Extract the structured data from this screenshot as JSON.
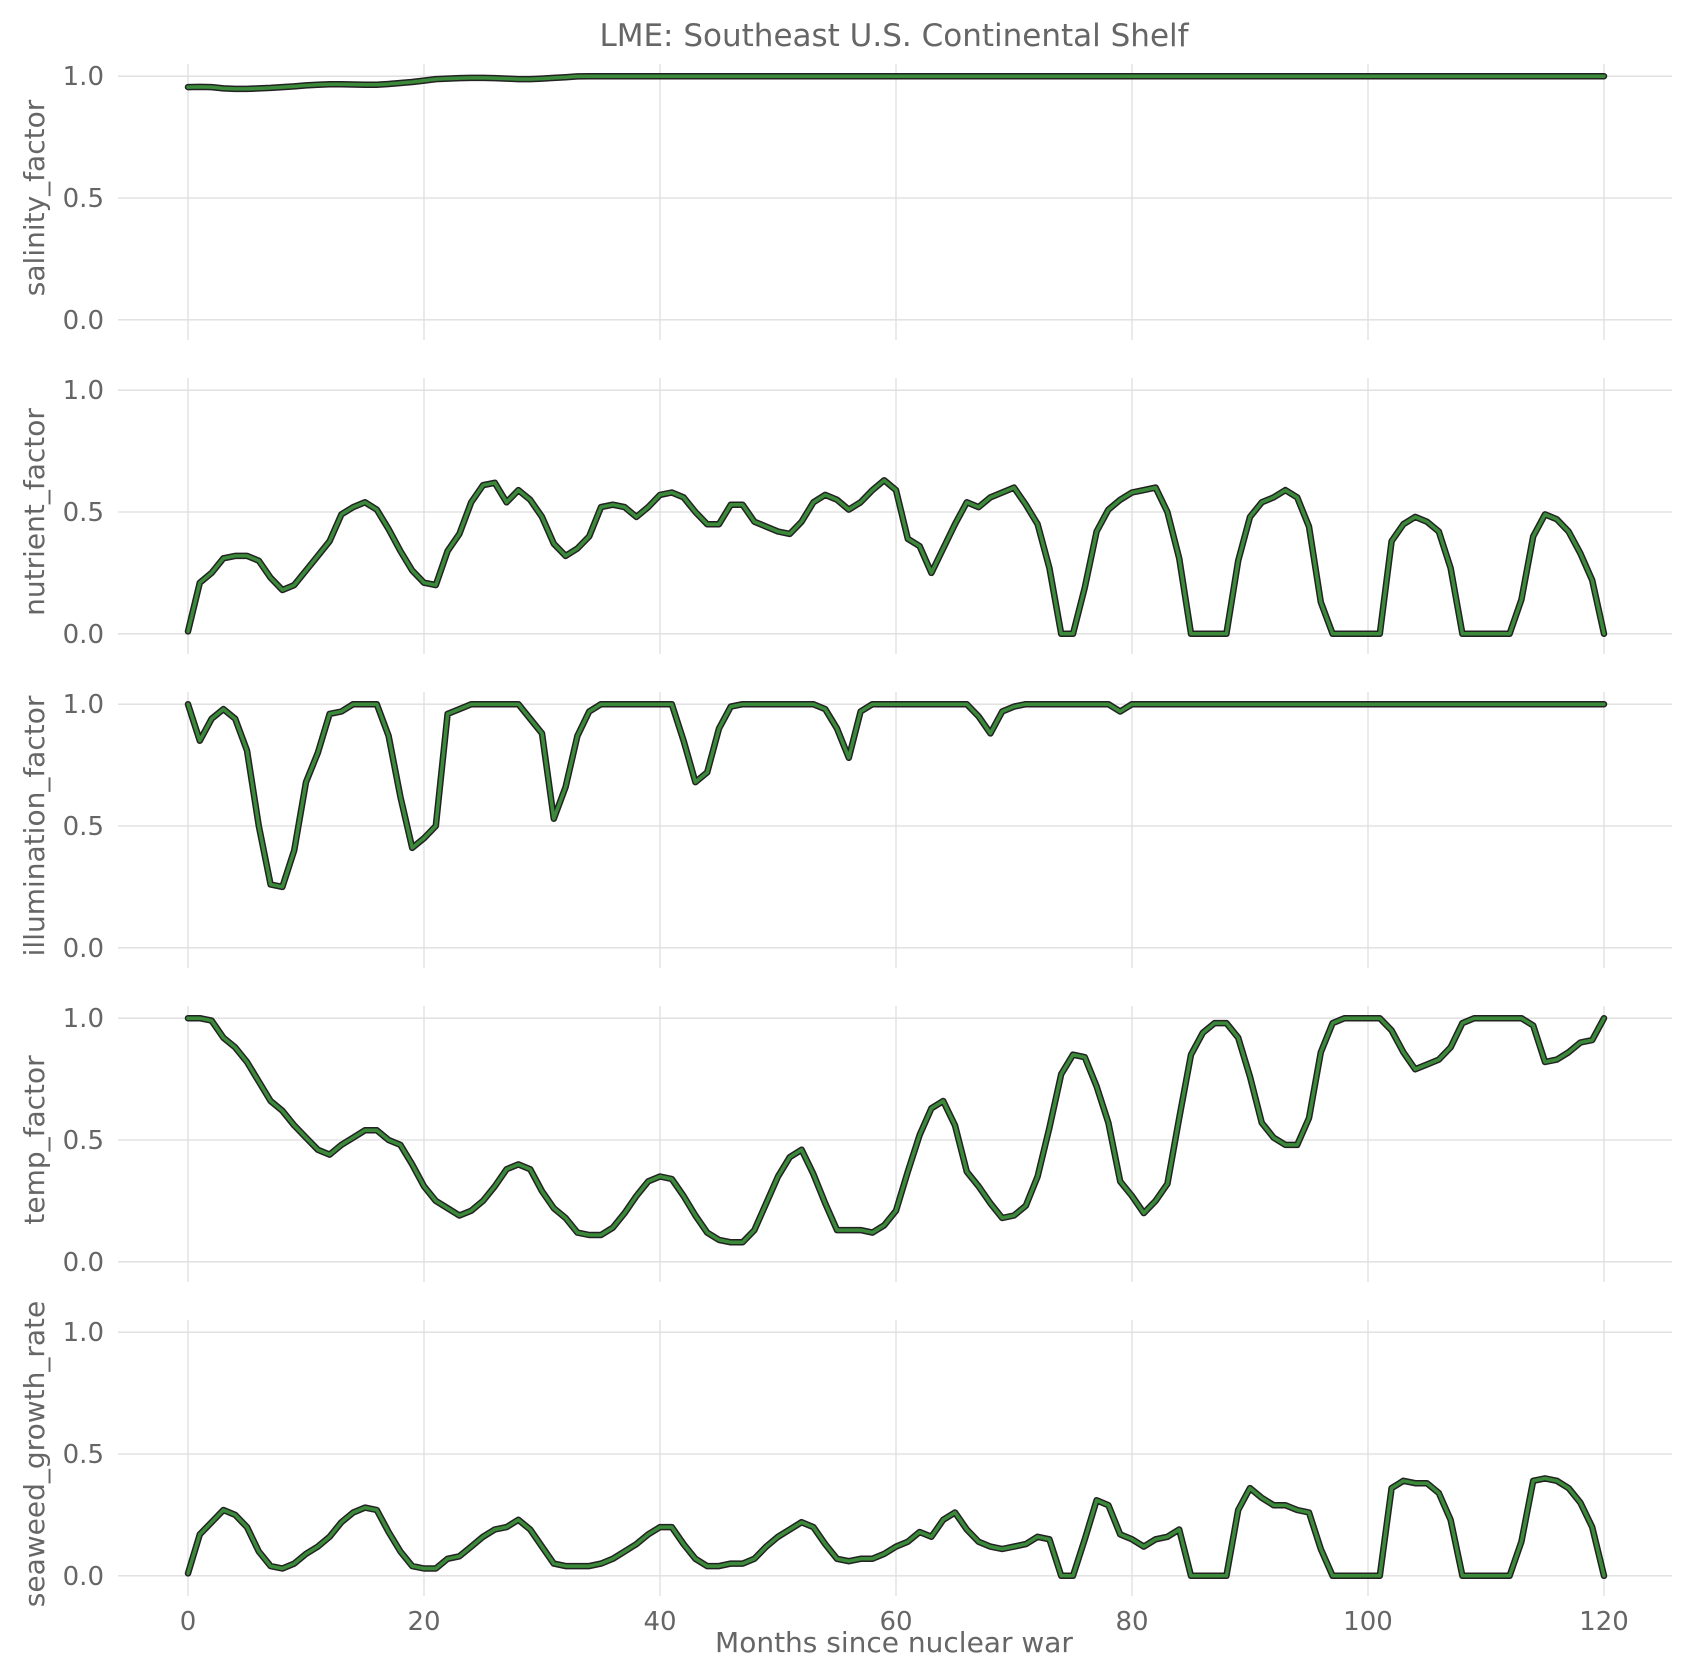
{
  "title": "LME: Southeast U.S. Continental Shelf",
  "xlabel": "Months since nuclear war",
  "colors": {
    "line": "#3a8a3a",
    "outline": "#222222",
    "grid": "#dedede",
    "text": "#666666"
  },
  "chart_data": [
    {
      "type": "line",
      "ylabel": "salinity_factor",
      "xlim": [
        0,
        120
      ],
      "ylim": [
        0,
        1
      ],
      "xticks": [
        "0",
        "20",
        "40",
        "60",
        "80",
        "100",
        "120"
      ],
      "yticks": [
        "0.0",
        "0.5",
        "1.0"
      ],
      "grid": true,
      "x": [
        0,
        1,
        2,
        3,
        4,
        5,
        6,
        7,
        8,
        9,
        10,
        11,
        12,
        13,
        14,
        15,
        16,
        17,
        18,
        19,
        20,
        21,
        22,
        23,
        24,
        25,
        26,
        27,
        28,
        29,
        30,
        31,
        32,
        33,
        34,
        35,
        36,
        37,
        38,
        39,
        40,
        41,
        42,
        43,
        44,
        45,
        46,
        47,
        48,
        49,
        50,
        51,
        52,
        53,
        54,
        55,
        56,
        57,
        58,
        59,
        60,
        61,
        62,
        63,
        64,
        65,
        66,
        67,
        68,
        69,
        70,
        71,
        72,
        73,
        74,
        75,
        76,
        77,
        78,
        79,
        80,
        81,
        82,
        83,
        84,
        85,
        86,
        87,
        88,
        89,
        90,
        91,
        92,
        93,
        94,
        95,
        96,
        97,
        98,
        99,
        100,
        101,
        102,
        103,
        104,
        105,
        106,
        107,
        108,
        109,
        110,
        111,
        112,
        113,
        114,
        115,
        116,
        117,
        118,
        119,
        120
      ],
      "values": [
        0.955,
        0.956,
        0.955,
        0.95,
        0.948,
        0.948,
        0.95,
        0.952,
        0.955,
        0.958,
        0.962,
        0.965,
        0.967,
        0.967,
        0.966,
        0.965,
        0.965,
        0.968,
        0.972,
        0.976,
        0.982,
        0.988,
        0.99,
        0.992,
        0.993,
        0.993,
        0.992,
        0.99,
        0.988,
        0.988,
        0.99,
        0.993,
        0.996,
        0.999,
        1,
        1,
        1,
        1,
        1,
        1,
        1,
        1,
        1,
        1,
        1,
        1,
        1,
        1,
        1,
        1,
        1,
        1,
        1,
        1,
        1,
        1,
        1,
        1,
        1,
        1,
        1,
        1,
        1,
        1,
        1,
        1,
        1,
        1,
        1,
        1,
        1,
        1,
        1,
        1,
        1,
        1,
        1,
        1,
        1,
        1,
        1,
        1,
        1,
        1,
        1,
        1,
        1,
        1,
        1,
        1,
        1,
        1,
        1,
        1,
        1,
        1,
        1,
        1,
        1,
        1,
        1,
        1,
        1,
        1,
        1,
        1,
        1,
        1,
        1,
        1,
        1,
        1,
        1,
        1,
        1,
        1,
        1,
        1,
        1,
        1,
        1
      ]
    },
    {
      "type": "line",
      "ylabel": "nutrient_factor",
      "xlim": [
        0,
        120
      ],
      "ylim": [
        0,
        1
      ],
      "xticks": [
        "0",
        "20",
        "40",
        "60",
        "80",
        "100",
        "120"
      ],
      "yticks": [
        "0.0",
        "0.5",
        "1.0"
      ],
      "grid": true,
      "x": [
        0,
        1,
        2,
        3,
        4,
        5,
        6,
        7,
        8,
        9,
        10,
        11,
        12,
        13,
        14,
        15,
        16,
        17,
        18,
        19,
        20,
        21,
        22,
        23,
        24,
        25,
        26,
        27,
        28,
        29,
        30,
        31,
        32,
        33,
        34,
        35,
        36,
        37,
        38,
        39,
        40,
        41,
        42,
        43,
        44,
        45,
        46,
        47,
        48,
        49,
        50,
        51,
        52,
        53,
        54,
        55,
        56,
        57,
        58,
        59,
        60,
        61,
        62,
        63,
        64,
        65,
        66,
        67,
        68,
        69,
        70,
        71,
        72,
        73,
        74,
        75,
        76,
        77,
        78,
        79,
        80,
        81,
        82,
        83,
        84,
        85,
        86,
        87,
        88,
        89,
        90,
        91,
        92,
        93,
        94,
        95,
        96,
        97,
        98,
        99,
        100,
        101,
        102,
        103,
        104,
        105,
        106,
        107,
        108,
        109,
        110,
        111,
        112,
        113,
        114,
        115,
        116,
        117,
        118,
        119,
        120
      ],
      "values": [
        0.01,
        0.21,
        0.25,
        0.31,
        0.32,
        0.32,
        0.3,
        0.23,
        0.18,
        0.2,
        0.26,
        0.32,
        0.38,
        0.49,
        0.52,
        0.54,
        0.51,
        0.43,
        0.34,
        0.26,
        0.21,
        0.2,
        0.34,
        0.41,
        0.54,
        0.61,
        0.62,
        0.54,
        0.59,
        0.55,
        0.48,
        0.37,
        0.32,
        0.35,
        0.4,
        0.52,
        0.53,
        0.52,
        0.48,
        0.52,
        0.57,
        0.58,
        0.56,
        0.5,
        0.45,
        0.45,
        0.53,
        0.53,
        0.46,
        0.44,
        0.42,
        0.41,
        0.46,
        0.54,
        0.57,
        0.55,
        0.51,
        0.54,
        0.59,
        0.63,
        0.59,
        0.39,
        0.36,
        0.25,
        0.35,
        0.45,
        0.54,
        0.52,
        0.56,
        0.58,
        0.6,
        0.53,
        0.45,
        0.27,
        0,
        0,
        0.19,
        0.42,
        0.51,
        0.55,
        0.58,
        0.59,
        0.6,
        0.5,
        0.31,
        0,
        0,
        0,
        0,
        0.3,
        0.48,
        0.54,
        0.56,
        0.59,
        0.56,
        0.44,
        0.13,
        0,
        0,
        0,
        0,
        0,
        0.38,
        0.45,
        0.48,
        0.46,
        0.42,
        0.27,
        0,
        0,
        0,
        0,
        0,
        0.14,
        0.4,
        0.49,
        0.47,
        0.42,
        0.33,
        0.22,
        0
      ]
    },
    {
      "type": "line",
      "ylabel": "illumination_factor",
      "xlim": [
        0,
        120
      ],
      "ylim": [
        0,
        1
      ],
      "xticks": [
        "0",
        "20",
        "40",
        "60",
        "80",
        "100",
        "120"
      ],
      "yticks": [
        "0.0",
        "0.5",
        "1.0"
      ],
      "grid": true,
      "x": [
        0,
        1,
        2,
        3,
        4,
        5,
        6,
        7,
        8,
        9,
        10,
        11,
        12,
        13,
        14,
        15,
        16,
        17,
        18,
        19,
        20,
        21,
        22,
        23,
        24,
        25,
        26,
        27,
        28,
        29,
        30,
        31,
        32,
        33,
        34,
        35,
        36,
        37,
        38,
        39,
        40,
        41,
        42,
        43,
        44,
        45,
        46,
        47,
        48,
        49,
        50,
        51,
        52,
        53,
        54,
        55,
        56,
        57,
        58,
        59,
        60,
        61,
        62,
        63,
        64,
        65,
        66,
        67,
        68,
        69,
        70,
        71,
        72,
        73,
        74,
        75,
        76,
        77,
        78,
        79,
        80,
        81,
        82,
        83,
        84,
        85,
        86,
        87,
        88,
        89,
        90,
        91,
        92,
        93,
        94,
        95,
        96,
        97,
        98,
        99,
        100,
        101,
        102,
        103,
        104,
        105,
        106,
        107,
        108,
        109,
        110,
        111,
        112,
        113,
        114,
        115,
        116,
        117,
        118,
        119,
        120
      ],
      "values": [
        1,
        0.85,
        0.94,
        0.98,
        0.94,
        0.81,
        0.5,
        0.26,
        0.25,
        0.4,
        0.68,
        0.8,
        0.96,
        0.97,
        1,
        1,
        1,
        0.87,
        0.62,
        0.41,
        0.45,
        0.5,
        0.96,
        0.98,
        1,
        1,
        1,
        1,
        1,
        0.94,
        0.88,
        0.53,
        0.66,
        0.87,
        0.97,
        1,
        1,
        1,
        1,
        1,
        1,
        1,
        0.85,
        0.68,
        0.72,
        0.9,
        0.99,
        1,
        1,
        1,
        1,
        1,
        1,
        1,
        0.98,
        0.9,
        0.78,
        0.97,
        1,
        1,
        1,
        1,
        1,
        1,
        1,
        1,
        1,
        0.95,
        0.88,
        0.97,
        0.99,
        1,
        1,
        1,
        1,
        1,
        1,
        1,
        1,
        0.97,
        1,
        1,
        1,
        1,
        1,
        1,
        1,
        1,
        1,
        1,
        1,
        1,
        1,
        1,
        1,
        1,
        1,
        1,
        1,
        1,
        1,
        1,
        1,
        1,
        1,
        1,
        1,
        1,
        1,
        1,
        1,
        1,
        1,
        1,
        1,
        1,
        1,
        1,
        1,
        1,
        1
      ]
    },
    {
      "type": "line",
      "ylabel": "temp_factor",
      "xlim": [
        0,
        120
      ],
      "ylim": [
        0,
        1
      ],
      "xticks": [
        "0",
        "20",
        "40",
        "60",
        "80",
        "100",
        "120"
      ],
      "yticks": [
        "0.0",
        "0.5",
        "1.0"
      ],
      "grid": true,
      "x": [
        0,
        1,
        2,
        3,
        4,
        5,
        6,
        7,
        8,
        9,
        10,
        11,
        12,
        13,
        14,
        15,
        16,
        17,
        18,
        19,
        20,
        21,
        22,
        23,
        24,
        25,
        26,
        27,
        28,
        29,
        30,
        31,
        32,
        33,
        34,
        35,
        36,
        37,
        38,
        39,
        40,
        41,
        42,
        43,
        44,
        45,
        46,
        47,
        48,
        49,
        50,
        51,
        52,
        53,
        54,
        55,
        56,
        57,
        58,
        59,
        60,
        61,
        62,
        63,
        64,
        65,
        66,
        67,
        68,
        69,
        70,
        71,
        72,
        73,
        74,
        75,
        76,
        77,
        78,
        79,
        80,
        81,
        82,
        83,
        84,
        85,
        86,
        87,
        88,
        89,
        90,
        91,
        92,
        93,
        94,
        95,
        96,
        97,
        98,
        99,
        100,
        101,
        102,
        103,
        104,
        105,
        106,
        107,
        108,
        109,
        110,
        111,
        112,
        113,
        114,
        115,
        116,
        117,
        118,
        119,
        120
      ],
      "values": [
        1,
        1,
        0.99,
        0.92,
        0.88,
        0.82,
        0.74,
        0.66,
        0.62,
        0.56,
        0.51,
        0.46,
        0.44,
        0.48,
        0.51,
        0.54,
        0.54,
        0.5,
        0.48,
        0.4,
        0.31,
        0.25,
        0.22,
        0.19,
        0.21,
        0.25,
        0.31,
        0.38,
        0.4,
        0.38,
        0.29,
        0.22,
        0.18,
        0.12,
        0.11,
        0.11,
        0.14,
        0.2,
        0.27,
        0.33,
        0.35,
        0.34,
        0.27,
        0.19,
        0.12,
        0.09,
        0.08,
        0.08,
        0.13,
        0.24,
        0.35,
        0.43,
        0.46,
        0.36,
        0.24,
        0.13,
        0.13,
        0.13,
        0.12,
        0.15,
        0.21,
        0.37,
        0.52,
        0.63,
        0.66,
        0.56,
        0.37,
        0.31,
        0.24,
        0.18,
        0.19,
        0.23,
        0.35,
        0.55,
        0.77,
        0.85,
        0.84,
        0.72,
        0.57,
        0.33,
        0.27,
        0.2,
        0.25,
        0.32,
        0.59,
        0.85,
        0.94,
        0.98,
        0.98,
        0.92,
        0.76,
        0.57,
        0.51,
        0.48,
        0.48,
        0.59,
        0.86,
        0.98,
        1,
        1,
        1,
        1,
        0.95,
        0.86,
        0.79,
        0.81,
        0.83,
        0.88,
        0.98,
        1,
        1,
        1,
        1,
        1,
        0.97,
        0.82,
        0.83,
        0.86,
        0.9,
        0.91,
        1
      ]
    },
    {
      "type": "line",
      "ylabel": "seaweed_growth_rate",
      "xlim": [
        0,
        120
      ],
      "ylim": [
        0,
        1
      ],
      "xticks": [
        "0",
        "20",
        "40",
        "60",
        "80",
        "100",
        "120"
      ],
      "yticks": [
        "0.0",
        "0.5",
        "1.0"
      ],
      "grid": true,
      "x": [
        0,
        1,
        2,
        3,
        4,
        5,
        6,
        7,
        8,
        9,
        10,
        11,
        12,
        13,
        14,
        15,
        16,
        17,
        18,
        19,
        20,
        21,
        22,
        23,
        24,
        25,
        26,
        27,
        28,
        29,
        30,
        31,
        32,
        33,
        34,
        35,
        36,
        37,
        38,
        39,
        40,
        41,
        42,
        43,
        44,
        45,
        46,
        47,
        48,
        49,
        50,
        51,
        52,
        53,
        54,
        55,
        56,
        57,
        58,
        59,
        60,
        61,
        62,
        63,
        64,
        65,
        66,
        67,
        68,
        69,
        70,
        71,
        72,
        73,
        74,
        75,
        76,
        77,
        78,
        79,
        80,
        81,
        82,
        83,
        84,
        85,
        86,
        87,
        88,
        89,
        90,
        91,
        92,
        93,
        94,
        95,
        96,
        97,
        98,
        99,
        100,
        101,
        102,
        103,
        104,
        105,
        106,
        107,
        108,
        109,
        110,
        111,
        112,
        113,
        114,
        115,
        116,
        117,
        118,
        119,
        120
      ],
      "values": [
        0.01,
        0.17,
        0.22,
        0.27,
        0.25,
        0.2,
        0.1,
        0.04,
        0.03,
        0.05,
        0.09,
        0.12,
        0.16,
        0.22,
        0.26,
        0.28,
        0.27,
        0.18,
        0.1,
        0.04,
        0.03,
        0.03,
        0.07,
        0.08,
        0.12,
        0.16,
        0.19,
        0.2,
        0.23,
        0.19,
        0.12,
        0.05,
        0.04,
        0.04,
        0.04,
        0.05,
        0.07,
        0.1,
        0.13,
        0.17,
        0.2,
        0.2,
        0.13,
        0.07,
        0.04,
        0.04,
        0.05,
        0.05,
        0.07,
        0.12,
        0.16,
        0.19,
        0.22,
        0.2,
        0.13,
        0.07,
        0.06,
        0.07,
        0.07,
        0.09,
        0.12,
        0.14,
        0.18,
        0.16,
        0.23,
        0.26,
        0.19,
        0.14,
        0.12,
        0.11,
        0.12,
        0.13,
        0.16,
        0.15,
        0,
        0,
        0.15,
        0.31,
        0.29,
        0.17,
        0.15,
        0.12,
        0.15,
        0.16,
        0.19,
        0,
        0,
        0,
        0,
        0.27,
        0.36,
        0.32,
        0.29,
        0.29,
        0.27,
        0.26,
        0.11,
        0,
        0,
        0,
        0,
        0,
        0.36,
        0.39,
        0.38,
        0.38,
        0.34,
        0.23,
        0,
        0,
        0,
        0,
        0,
        0.14,
        0.39,
        0.4,
        0.39,
        0.36,
        0.3,
        0.2,
        0
      ]
    }
  ]
}
